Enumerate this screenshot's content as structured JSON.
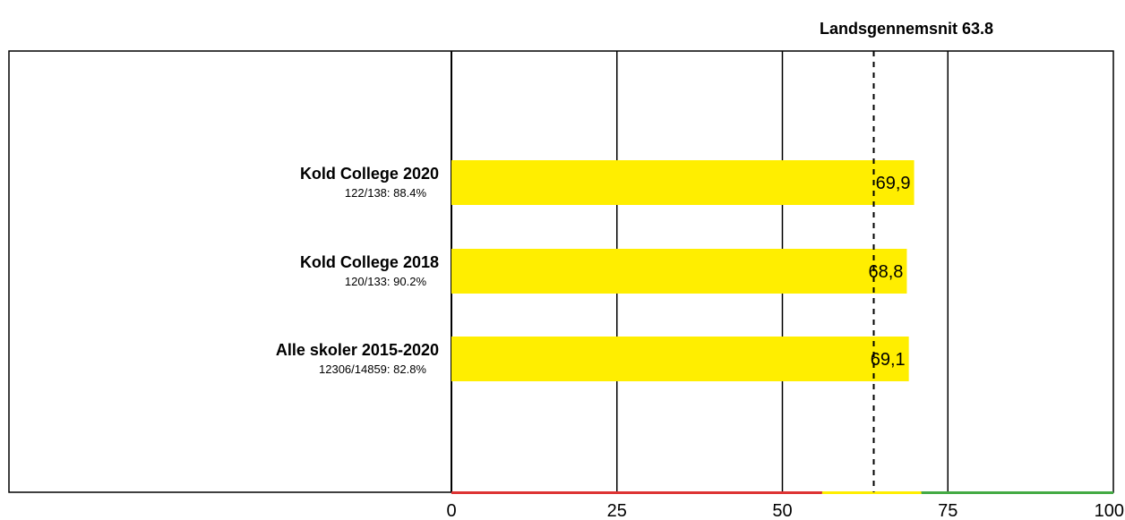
{
  "chart_data": {
    "type": "bar",
    "orientation": "horizontal",
    "categories": [
      "Kold College 2020",
      "Kold College 2018",
      "Alle skoler 2015-2020"
    ],
    "category_notes": [
      "122/138: 88.4%",
      "120/133: 90.2%",
      "12306/14859: 82.8%"
    ],
    "values": [
      69.9,
      68.8,
      69.1
    ],
    "value_labels": [
      "69,9",
      "68,8",
      "69,1"
    ],
    "bar_color": "#ffee00",
    "xlim": [
      0,
      100
    ],
    "ticks": [
      0,
      25,
      50,
      75,
      100
    ],
    "tick_labels": [
      "0",
      "25",
      "50",
      "75",
      "100"
    ],
    "grid": true,
    "reference_line": {
      "value": 63.8,
      "label": "Landsgennemsnit 63.8",
      "style": "dashed"
    },
    "color_bands": [
      {
        "from": 0,
        "to": 56,
        "color": "#dd3333"
      },
      {
        "from": 56,
        "to": 71,
        "color": "#ffee00"
      },
      {
        "from": 71,
        "to": 100,
        "color": "#44aa44"
      }
    ]
  }
}
